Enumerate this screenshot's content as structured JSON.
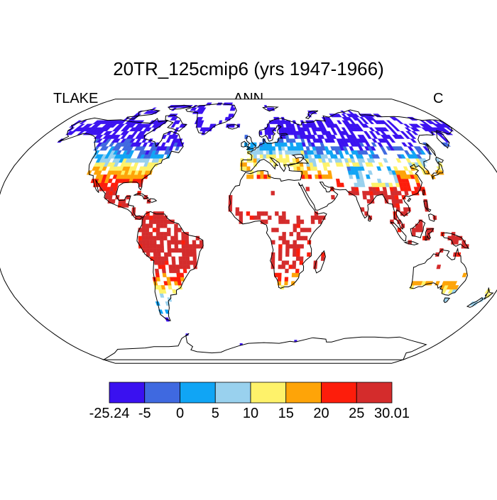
{
  "header": {
    "title": "20TR_125cmip6 (yrs 1947-1966)",
    "left_label": "TLAKE",
    "center_label": "ANN",
    "right_label": "C"
  },
  "map": {
    "projection": "robinson",
    "background_color": "#ffffff",
    "coastline_color": "#000000"
  },
  "colorbar": {
    "labels": [
      "-25.24",
      "-5",
      "0",
      "5",
      "10",
      "15",
      "20",
      "25",
      "30.01"
    ],
    "colors": [
      "#3a11f0",
      "#3f69e0",
      "#10a5f5",
      "#99d1ee",
      "#fef26a",
      "#fea408",
      "#fd1d0b",
      "#d42c2c"
    ]
  }
}
